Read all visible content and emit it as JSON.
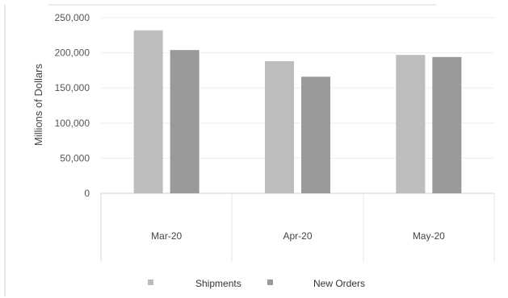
{
  "chart_data": {
    "type": "bar",
    "categories": [
      "Mar-20",
      "Apr-20",
      "May-20"
    ],
    "series": [
      {
        "name": "Shipments",
        "values": [
          232000,
          188000,
          197000
        ]
      },
      {
        "name": "New Orders",
        "values": [
          204000,
          166000,
          194000
        ]
      }
    ],
    "ylabel": "Millions of Dollars",
    "xlabel": "",
    "ylim": [
      0,
      250000
    ],
    "yticks": [
      "0",
      "50,000",
      "100,000",
      "150,000",
      "200,000",
      "250,000"
    ],
    "ytick_values": [
      0,
      50000,
      100000,
      150000,
      200000,
      250000
    ],
    "colors": {
      "Shipments": "#bdbdbd",
      "New Orders": "#9a9a9a"
    },
    "legend": "bottom",
    "grid": true
  }
}
